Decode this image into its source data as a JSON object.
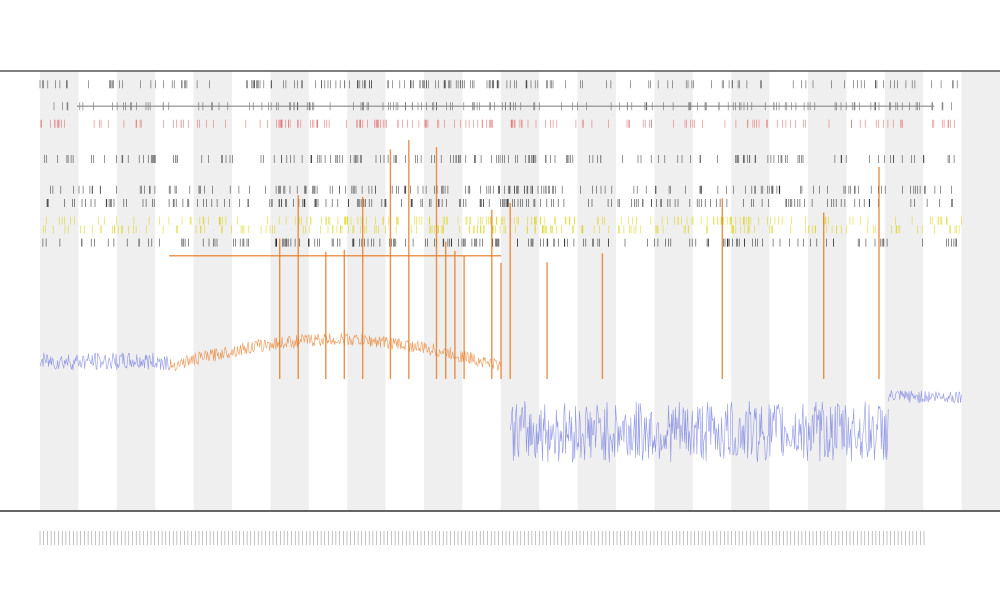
{
  "chart_data": {
    "type": "line",
    "title": "",
    "subtitle_lines": [],
    "xlabel": "",
    "ylabel": "",
    "grid": false,
    "background_bands": "alternating-light-gray",
    "series": [
      {
        "key": "baseline",
        "color": "#6c75e0",
        "segments": [
          {
            "x_start": 0.0,
            "x_end": 0.14,
            "level": 0.34,
            "noise": 0.02
          },
          {
            "x_start": 0.51,
            "x_end": 0.92,
            "level": 0.18,
            "noise": 0.07
          },
          {
            "x_start": 0.92,
            "x_end": 1.0,
            "level": 0.26,
            "noise": 0.015
          }
        ]
      },
      {
        "key": "active",
        "color": "#e8761c",
        "segments": [
          {
            "x_start": 0.14,
            "x_end": 0.5,
            "level": 0.33,
            "arc": 0.06,
            "noise": 0.015
          }
        ],
        "peaks": [
          0.26,
          0.28,
          0.31,
          0.33,
          0.35,
          0.38,
          0.4,
          0.43,
          0.44,
          0.45,
          0.46,
          0.49,
          0.5,
          0.51,
          0.55,
          0.61,
          0.74,
          0.85,
          0.91
        ]
      },
      {
        "key": "reference",
        "color": "#e8761c",
        "x_start": 0.14,
        "x_end": 0.5,
        "level": 0.58
      },
      {
        "key": "upper-rule",
        "color": "#888888",
        "x_start": 0.04,
        "x_end": 0.97,
        "level": 0.92
      }
    ],
    "event_rows": [
      {
        "color": "#333333",
        "level": 0.97
      },
      {
        "color": "#444444",
        "level": 0.92
      },
      {
        "color": "#e05a5a",
        "level": 0.88
      },
      {
        "color": "#222222",
        "level": 0.8
      },
      {
        "color": "#222222",
        "level": 0.73
      },
      {
        "color": "#111111",
        "level": 0.7
      },
      {
        "color": "#d8d000",
        "level": 0.66
      },
      {
        "color": "#d8d000",
        "level": 0.64
      },
      {
        "color": "#111111",
        "level": 0.61
      }
    ],
    "legend": {
      "placement": "top-left",
      "entries": []
    },
    "x_tick_count": 240
  }
}
